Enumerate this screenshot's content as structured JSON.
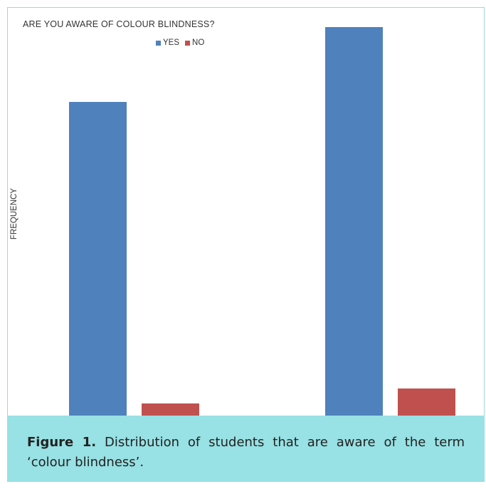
{
  "chart_data": {
    "type": "bar",
    "title": "ARE YOU AWARE OF COLOUR BLINDNESS?",
    "ylabel": "FREQUENCY",
    "xlabel": "",
    "categories": [
      "",
      ""
    ],
    "series": [
      {
        "name": "YES",
        "color": "#4f81bd",
        "values": [
          440,
          545
        ]
      },
      {
        "name": "NO",
        "color": "#c0504d",
        "values": [
          17,
          38
        ]
      }
    ],
    "ylim": [
      0,
      555
    ],
    "grid": false,
    "legend_position": "top"
  },
  "caption": {
    "lead": "Figure 1.",
    "text": " Distribution of students that are aware of the term ‘colour blindness’."
  }
}
